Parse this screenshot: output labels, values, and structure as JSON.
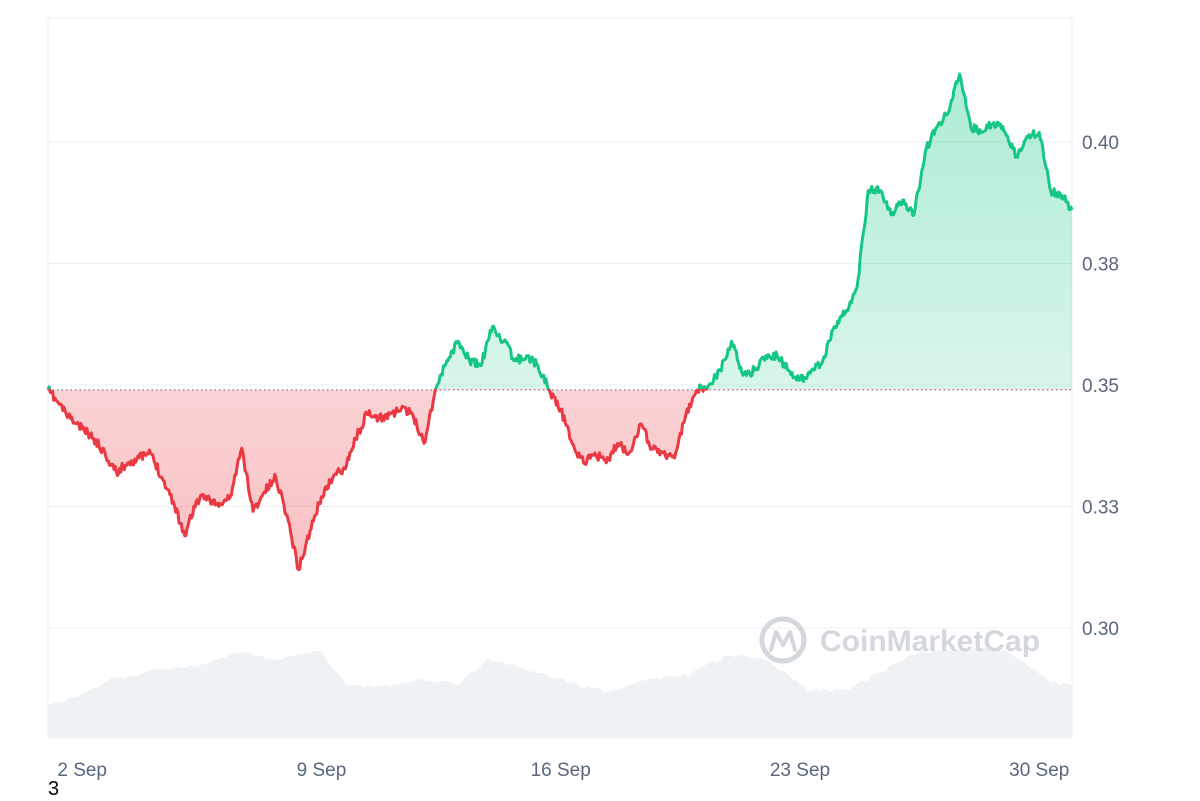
{
  "chart_data": {
    "type": "area",
    "title": "",
    "xlabel": "",
    "ylabel": "",
    "baseline": 0.349,
    "ylim": [
      0.275,
      0.43
    ],
    "xlim": [
      "2024-09-01",
      "2024-09-30T23:00"
    ],
    "y_ticks": [
      "0.30",
      "0.33",
      "0.35",
      "0.38",
      "0.40"
    ],
    "y_tick_values": [
      0.3,
      0.325,
      0.35,
      0.375,
      0.4
    ],
    "x_tick_labels": [
      "2 Sep",
      "9 Sep",
      "16 Sep",
      "23 Sep",
      "30 Sep"
    ],
    "x_tick_dates": [
      "2024-09-02",
      "2024-09-09",
      "2024-09-16",
      "2024-09-23",
      "2024-09-30"
    ],
    "grid": true,
    "colors": {
      "up": "#16c784",
      "down": "#ea3943",
      "volume": "#eff2f5",
      "grid": "#eceff2"
    },
    "series": [
      {
        "values": [
          [
            "2024-09-01T00:00",
            0.349
          ],
          [
            "2024-09-01T08:00",
            0.346
          ],
          [
            "2024-09-01T16:00",
            0.343
          ],
          [
            "2024-09-02T00:00",
            0.341
          ],
          [
            "2024-09-02T08:00",
            0.339
          ],
          [
            "2024-09-02T16:00",
            0.336
          ],
          [
            "2024-09-03T00:00",
            0.332
          ],
          [
            "2024-09-03T08:00",
            0.334
          ],
          [
            "2024-09-03T16:00",
            0.335
          ],
          [
            "2024-09-04T00:00",
            0.336
          ],
          [
            "2024-09-04T08:00",
            0.331
          ],
          [
            "2024-09-04T16:00",
            0.326
          ],
          [
            "2024-09-05T00:00",
            0.319
          ],
          [
            "2024-09-05T08:00",
            0.326
          ],
          [
            "2024-09-05T16:00",
            0.327
          ],
          [
            "2024-09-06T00:00",
            0.325
          ],
          [
            "2024-09-06T08:00",
            0.327
          ],
          [
            "2024-09-06T16:00",
            0.337
          ],
          [
            "2024-09-07T00:00",
            0.324
          ],
          [
            "2024-09-07T08:00",
            0.328
          ],
          [
            "2024-09-07T16:00",
            0.331
          ],
          [
            "2024-09-08T00:00",
            0.323
          ],
          [
            "2024-09-08T08:00",
            0.312
          ],
          [
            "2024-09-08T16:00",
            0.32
          ],
          [
            "2024-09-09T00:00",
            0.327
          ],
          [
            "2024-09-09T08:00",
            0.331
          ],
          [
            "2024-09-09T16:00",
            0.333
          ],
          [
            "2024-09-10T00:00",
            0.339
          ],
          [
            "2024-09-10T08:00",
            0.344
          ],
          [
            "2024-09-10T16:00",
            0.343
          ],
          [
            "2024-09-11T00:00",
            0.344
          ],
          [
            "2024-09-11T08:00",
            0.345
          ],
          [
            "2024-09-11T16:00",
            0.344
          ],
          [
            "2024-09-12T00:00",
            0.338
          ],
          [
            "2024-09-12T08:00",
            0.349
          ],
          [
            "2024-09-12T16:00",
            0.355
          ],
          [
            "2024-09-13T00:00",
            0.359
          ],
          [
            "2024-09-13T08:00",
            0.355
          ],
          [
            "2024-09-13T16:00",
            0.354
          ],
          [
            "2024-09-14T00:00",
            0.362
          ],
          [
            "2024-09-14T08:00",
            0.359
          ],
          [
            "2024-09-14T16:00",
            0.355
          ],
          [
            "2024-09-15T00:00",
            0.356
          ],
          [
            "2024-09-15T08:00",
            0.354
          ],
          [
            "2024-09-15T16:00",
            0.349
          ],
          [
            "2024-09-16T00:00",
            0.345
          ],
          [
            "2024-09-16T08:00",
            0.338
          ],
          [
            "2024-09-16T16:00",
            0.334
          ],
          [
            "2024-09-17T00:00",
            0.336
          ],
          [
            "2024-09-17T08:00",
            0.334
          ],
          [
            "2024-09-17T16:00",
            0.338
          ],
          [
            "2024-09-18T00:00",
            0.336
          ],
          [
            "2024-09-18T08:00",
            0.342
          ],
          [
            "2024-09-18T16:00",
            0.337
          ],
          [
            "2024-09-19T00:00",
            0.336
          ],
          [
            "2024-09-19T08:00",
            0.335
          ],
          [
            "2024-09-19T16:00",
            0.344
          ],
          [
            "2024-09-20T00:00",
            0.349
          ],
          [
            "2024-09-20T08:00",
            0.35
          ],
          [
            "2024-09-20T16:00",
            0.353
          ],
          [
            "2024-09-21T00:00",
            0.359
          ],
          [
            "2024-09-21T08:00",
            0.352
          ],
          [
            "2024-09-21T16:00",
            0.353
          ],
          [
            "2024-09-22T00:00",
            0.356
          ],
          [
            "2024-09-22T08:00",
            0.356
          ],
          [
            "2024-09-22T16:00",
            0.353
          ],
          [
            "2024-09-23T00:00",
            0.351
          ],
          [
            "2024-09-23T08:00",
            0.353
          ],
          [
            "2024-09-23T16:00",
            0.355
          ],
          [
            "2024-09-24T00:00",
            0.362
          ],
          [
            "2024-09-24T08:00",
            0.365
          ],
          [
            "2024-09-24T16:00",
            0.37
          ],
          [
            "2024-09-25T00:00",
            0.39
          ],
          [
            "2024-09-25T08:00",
            0.39
          ],
          [
            "2024-09-25T16:00",
            0.385
          ],
          [
            "2024-09-26T00:00",
            0.388
          ],
          [
            "2024-09-26T08:00",
            0.385
          ],
          [
            "2024-09-26T16:00",
            0.398
          ],
          [
            "2024-09-27T00:00",
            0.403
          ],
          [
            "2024-09-27T08:00",
            0.406
          ],
          [
            "2024-09-27T16:00",
            0.414
          ],
          [
            "2024-09-28T00:00",
            0.403
          ],
          [
            "2024-09-28T08:00",
            0.402
          ],
          [
            "2024-09-28T16:00",
            0.404
          ],
          [
            "2024-09-29T00:00",
            0.402
          ],
          [
            "2024-09-29T08:00",
            0.397
          ],
          [
            "2024-09-29T16:00",
            0.401
          ],
          [
            "2024-09-30T00:00",
            0.402
          ],
          [
            "2024-09-30T08:00",
            0.39
          ],
          [
            "2024-09-30T16:00",
            0.389
          ],
          [
            "2024-09-30T23:00",
            0.386
          ]
        ]
      }
    ]
  },
  "watermark": {
    "text": "CoinMarketCap"
  },
  "page_number": "3"
}
